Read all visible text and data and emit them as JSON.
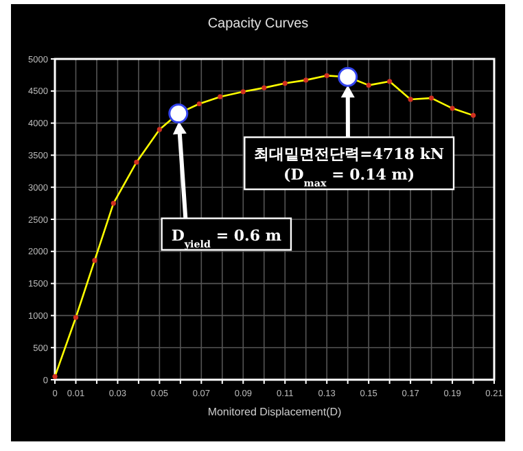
{
  "chart_data": {
    "type": "line",
    "title": "Capacity Curves",
    "xlabel": "Monitored Displacement(D)",
    "x": [
      0,
      0.01,
      0.019,
      0.028,
      0.039,
      0.05,
      0.059,
      0.069,
      0.079,
      0.09,
      0.1,
      0.11,
      0.12,
      0.13,
      0.14,
      0.15,
      0.16,
      0.17,
      0.18,
      0.19,
      0.2
    ],
    "values": [
      50,
      970,
      1860,
      2750,
      3390,
      3900,
      4150,
      4300,
      4410,
      4490,
      4550,
      4620,
      4670,
      4740,
      4720,
      4590,
      4650,
      4370,
      4390,
      4230,
      4120
    ],
    "color": "#ffff00",
    "marker": "circle",
    "line_style": "solid",
    "grid": true,
    "xlim": [
      0,
      0.21
    ],
    "ylim": [
      0,
      5000
    ],
    "xticks": [
      0,
      0.01,
      {
        "value": 0.02,
        "label": null
      },
      0.03,
      {
        "value": 0.04,
        "label": null
      },
      0.05,
      {
        "value": 0.06,
        "label": null
      },
      0.07,
      {
        "value": 0.08,
        "label": null
      },
      0.09,
      {
        "value": 0.1,
        "label": null
      },
      0.11,
      {
        "value": 0.12,
        "label": null
      },
      0.13,
      {
        "value": 0.14,
        "label": null
      },
      0.15,
      {
        "value": 0.16,
        "label": null
      },
      0.17,
      {
        "value": 0.18,
        "label": null
      },
      0.19,
      {
        "value": 0.2,
        "label": null
      },
      0.21
    ],
    "yticks": [
      0,
      500,
      1000,
      1500,
      2000,
      2500,
      3000,
      3500,
      4000,
      4500,
      5000
    ],
    "annotations": [
      "최대밑면전단력=4718 kN\n(D$_{max}$ = 0.14 m)",
      "D$_{yield}$ = 0.6 m"
    ]
  }
}
